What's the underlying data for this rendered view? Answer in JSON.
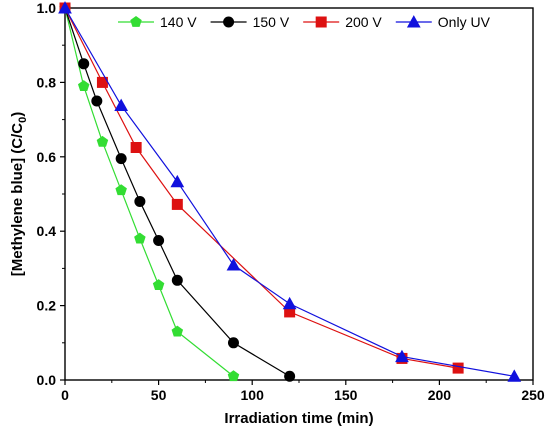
{
  "chart_data": {
    "type": "line",
    "xlabel": "Irradiation time (min)",
    "ylabel": {
      "main": "[Methylene blue] (C/C",
      "sub": "0",
      "close": ")"
    },
    "xlim": [
      0,
      250
    ],
    "ylim": [
      0,
      1.0
    ],
    "x_ticks": [
      "0",
      "50",
      "100",
      "150",
      "200",
      "250"
    ],
    "y_ticks": [
      "0.0",
      "0.2",
      "0.4",
      "0.6",
      "0.8",
      "1.0"
    ],
    "x_tick_values": [
      0,
      50,
      100,
      150,
      200,
      250
    ],
    "y_tick_values": [
      0,
      0.2,
      0.4,
      0.6,
      0.8,
      1.0
    ],
    "grid": false,
    "legend_position": "top",
    "series": [
      {
        "name": "140 V",
        "color": "#33dd33",
        "marker": "pentagon",
        "x": [
          0,
          10,
          20,
          30,
          40,
          50,
          60,
          90
        ],
        "y": [
          1.0,
          0.79,
          0.64,
          0.51,
          0.38,
          0.255,
          0.13,
          0.01
        ]
      },
      {
        "name": "150 V",
        "color": "#000000",
        "marker": "circle",
        "x": [
          0,
          10,
          17,
          30,
          40,
          50,
          60,
          90,
          120
        ],
        "y": [
          1.0,
          0.85,
          0.75,
          0.595,
          0.48,
          0.375,
          0.268,
          0.1,
          0.01
        ]
      },
      {
        "name": "200 V",
        "color": "#dd1111",
        "marker": "square",
        "x": [
          0,
          20,
          38,
          60,
          120,
          180,
          210
        ],
        "y": [
          1.0,
          0.8,
          0.625,
          0.472,
          0.183,
          0.058,
          0.032
        ]
      },
      {
        "name": "Only UV",
        "color": "#1111dd",
        "marker": "triangle",
        "x": [
          0,
          30,
          60,
          90,
          120,
          180,
          240
        ],
        "y": [
          1.0,
          0.738,
          0.533,
          0.309,
          0.205,
          0.063,
          0.01
        ]
      }
    ]
  }
}
